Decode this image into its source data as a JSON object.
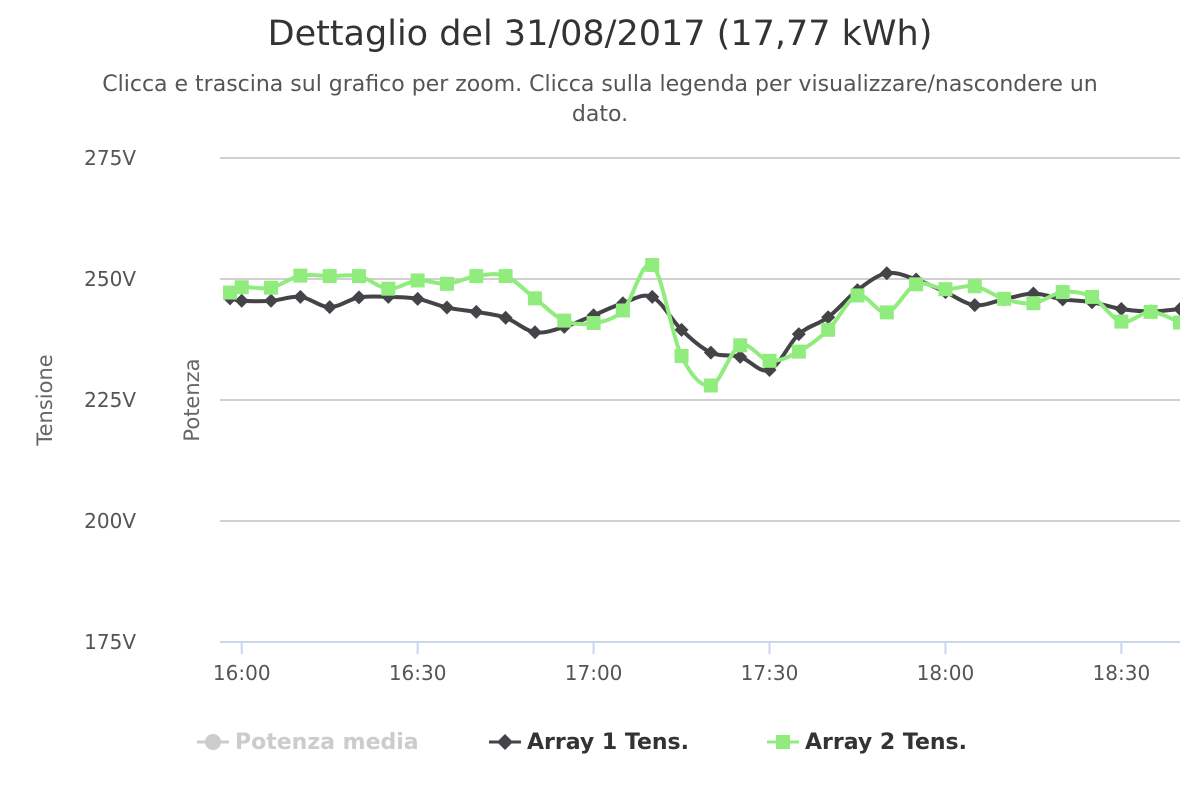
{
  "title": "Dettaglio del 31/08/2017 (17,77 kWh)",
  "subtitle": "Clicca e trascina sul grafico per zoom. Clicca sulla legenda per visualizzare/nascondere un dato.",
  "chart_data": {
    "type": "line",
    "yaxis_primary_title": "Tensione",
    "yaxis_secondary_title": "Potenza",
    "y_unit": "V",
    "ylim": [
      175,
      275
    ],
    "yticks": [
      275,
      250,
      225,
      200,
      175
    ],
    "ytick_labels": [
      "275V",
      "250V",
      "225V",
      "200V",
      "175V"
    ],
    "x_range": [
      "15:58",
      "18:40"
    ],
    "xticks": [
      "16:00",
      "16:30",
      "17:00",
      "17:30",
      "18:00",
      "18:30"
    ],
    "grid": true,
    "legend_position": "bottom-center",
    "series": [
      {
        "name": "Potenza media",
        "hidden": true,
        "color": "#cccccc",
        "marker": "circle",
        "points": []
      },
      {
        "name": "Array 1 Tens.",
        "hidden": false,
        "color": "#434348",
        "marker": "diamond",
        "points": [
          [
            "15:58",
            246.0
          ],
          [
            "16:00",
            245.5
          ],
          [
            "16:05",
            245.5
          ],
          [
            "16:10",
            246.3
          ],
          [
            "16:15",
            244.2
          ],
          [
            "16:20",
            246.2
          ],
          [
            "16:25",
            246.3
          ],
          [
            "16:30",
            245.9
          ],
          [
            "16:35",
            244.1
          ],
          [
            "16:40",
            243.2
          ],
          [
            "16:45",
            242.0
          ],
          [
            "16:50",
            239.0
          ],
          [
            "16:55",
            240.1
          ],
          [
            "17:00",
            242.5
          ],
          [
            "17:05",
            245.0
          ],
          [
            "17:10",
            246.3
          ],
          [
            "17:15",
            239.5
          ],
          [
            "17:20",
            234.8
          ],
          [
            "17:25",
            233.9
          ],
          [
            "17:30",
            231.2
          ],
          [
            "17:35",
            238.6
          ],
          [
            "17:40",
            242.1
          ],
          [
            "17:45",
            247.7
          ],
          [
            "17:50",
            251.2
          ],
          [
            "17:55",
            249.9
          ],
          [
            "18:00",
            247.3
          ],
          [
            "18:05",
            244.6
          ],
          [
            "18:10",
            245.8
          ],
          [
            "18:15",
            247.0
          ],
          [
            "18:20",
            245.8
          ],
          [
            "18:25",
            245.2
          ],
          [
            "18:30",
            243.8
          ],
          [
            "18:35",
            243.3
          ],
          [
            "18:40",
            243.8
          ]
        ]
      },
      {
        "name": "Array 2 Tens.",
        "hidden": false,
        "color": "#90ed7d",
        "marker": "square",
        "points": [
          [
            "15:58",
            247.2
          ],
          [
            "16:00",
            248.3
          ],
          [
            "16:05",
            248.2
          ],
          [
            "16:10",
            250.7
          ],
          [
            "16:15",
            250.6
          ],
          [
            "16:20",
            250.6
          ],
          [
            "16:25",
            248.0
          ],
          [
            "16:30",
            249.7
          ],
          [
            "16:35",
            249.0
          ],
          [
            "16:40",
            250.6
          ],
          [
            "16:45",
            250.6
          ],
          [
            "16:50",
            246.0
          ],
          [
            "16:55",
            241.4
          ],
          [
            "17:00",
            240.9
          ],
          [
            "17:05",
            243.5
          ],
          [
            "17:10",
            252.9
          ],
          [
            "17:15",
            234.1
          ],
          [
            "17:20",
            228.0
          ],
          [
            "17:25",
            236.3
          ],
          [
            "17:30",
            233.1
          ],
          [
            "17:35",
            235.0
          ],
          [
            "17:40",
            239.5
          ],
          [
            "17:45",
            246.6
          ],
          [
            "17:50",
            243.1
          ],
          [
            "17:55",
            248.9
          ],
          [
            "18:00",
            247.9
          ],
          [
            "18:05",
            248.5
          ],
          [
            "18:10",
            245.9
          ],
          [
            "18:15",
            245.0
          ],
          [
            "18:20",
            247.3
          ],
          [
            "18:25",
            246.3
          ],
          [
            "18:30",
            241.2
          ],
          [
            "18:35",
            243.2
          ],
          [
            "18:40",
            241.0
          ]
        ]
      }
    ]
  }
}
